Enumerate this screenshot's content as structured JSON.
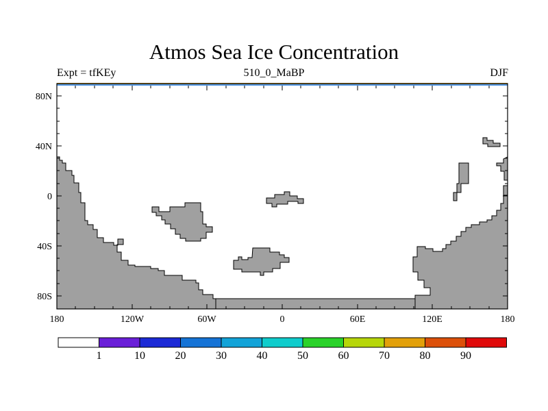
{
  "title": "Atmos Sea Ice Concentration",
  "subtitle_left": "Expt = tfKEy",
  "subtitle_center": "510_0_MaBP",
  "subtitle_right": "DJF",
  "lat_ticks": [
    "80N",
    "40N",
    "0",
    "40S",
    "80S"
  ],
  "lon_ticks": [
    "180",
    "120W",
    "60W",
    "0",
    "60E",
    "120E",
    "180"
  ],
  "colorbar": {
    "labels": [
      "1",
      "10",
      "20",
      "30",
      "40",
      "50",
      "60",
      "70",
      "80",
      "90"
    ],
    "colors": [
      "#ffffff",
      "#6a1fd8",
      "#1c2ad6",
      "#1573d6",
      "#12a3d8",
      "#0fcccc",
      "#2ad22a",
      "#b6d60a",
      "#e2a00a",
      "#dc500a",
      "#e00a0a"
    ]
  },
  "colors": {
    "land": "#a0a0a0",
    "sea_ice_band_top": "#c8a040",
    "sea_ice_band_bottom": "#4a90e0"
  }
}
